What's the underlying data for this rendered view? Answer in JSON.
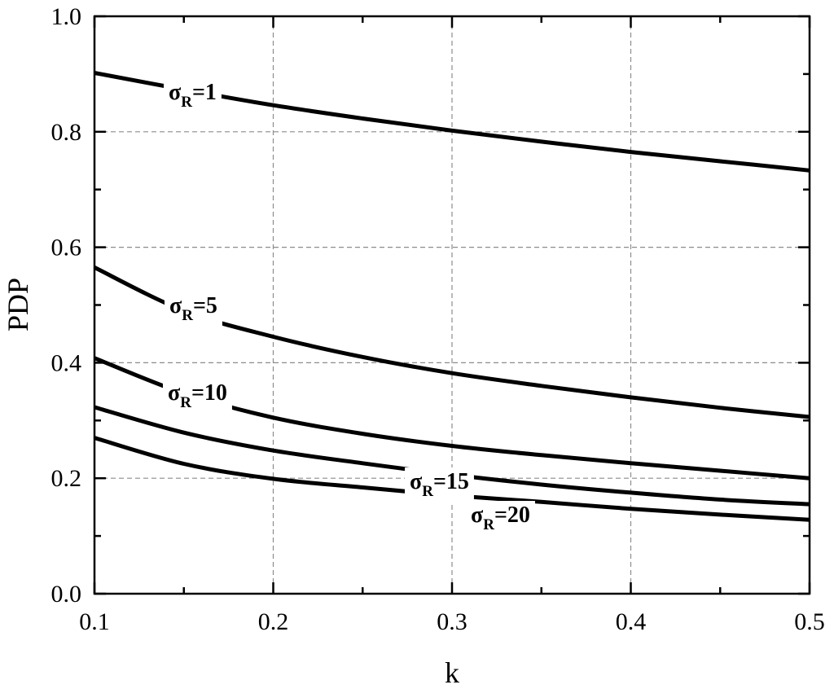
{
  "chart_data": {
    "type": "line",
    "title": "",
    "xlabel": "k",
    "ylabel": "PDP",
    "xlim": [
      0.1,
      0.5
    ],
    "ylim": [
      0.0,
      1.0
    ],
    "x_ticks": [
      "0.1",
      "0.2",
      "0.3",
      "0.4",
      "0.5"
    ],
    "y_ticks": [
      "0.0",
      "0.2",
      "0.4",
      "0.6",
      "0.8",
      "1.0"
    ],
    "grid": true,
    "legend": "inline labels",
    "series": [
      {
        "label_main": "σ",
        "label_sub": "R",
        "label_tail": "=1",
        "x": [
          0.1,
          0.15,
          0.2,
          0.25,
          0.3,
          0.35,
          0.4,
          0.45,
          0.5
        ],
        "y": [
          0.902,
          0.873,
          0.846,
          0.823,
          0.802,
          0.783,
          0.765,
          0.749,
          0.733
        ]
      },
      {
        "label_main": "σ",
        "label_sub": "R",
        "label_tail": "=5",
        "x": [
          0.1,
          0.15,
          0.2,
          0.25,
          0.3,
          0.35,
          0.4,
          0.45,
          0.5
        ],
        "y": [
          0.565,
          0.49,
          0.445,
          0.41,
          0.382,
          0.36,
          0.34,
          0.322,
          0.306
        ]
      },
      {
        "label_main": "σ",
        "label_sub": "R",
        "label_tail": "=10",
        "x": [
          0.1,
          0.15,
          0.2,
          0.25,
          0.3,
          0.35,
          0.4,
          0.45,
          0.5
        ],
        "y": [
          0.408,
          0.347,
          0.305,
          0.277,
          0.256,
          0.24,
          0.226,
          0.213,
          0.2
        ]
      },
      {
        "label_main": "σ",
        "label_sub": "R",
        "label_tail": "=15",
        "x": [
          0.1,
          0.15,
          0.2,
          0.25,
          0.3,
          0.35,
          0.4,
          0.45,
          0.5
        ],
        "y": [
          0.323,
          0.279,
          0.248,
          0.226,
          0.206,
          0.189,
          0.175,
          0.163,
          0.155
        ]
      },
      {
        "label_main": "σ",
        "label_sub": "R",
        "label_tail": "=20",
        "x": [
          0.1,
          0.15,
          0.2,
          0.25,
          0.3,
          0.35,
          0.4,
          0.45,
          0.5
        ],
        "y": [
          0.27,
          0.225,
          0.199,
          0.184,
          0.17,
          0.159,
          0.147,
          0.137,
          0.128
        ]
      }
    ]
  }
}
